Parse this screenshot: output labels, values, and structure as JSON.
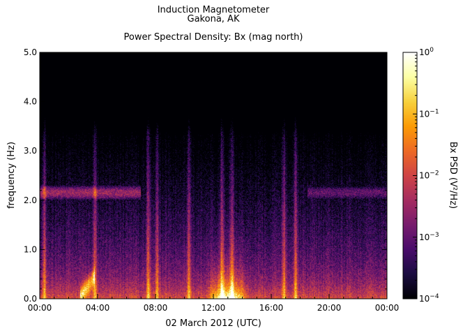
{
  "chart_data": {
    "type": "heatmap",
    "title": "Induction Magnetometer",
    "subtitle": "Gakona, AK",
    "plot_title": "Power Spectral Density: Bx (mag north)",
    "xlabel": "02 March 2012 (UTC)",
    "ylabel": "frequency (Hz)",
    "x_ticks": [
      "00:00",
      "04:00",
      "08:00",
      "12:00",
      "16:00",
      "20:00",
      "00:00"
    ],
    "x_range_hours": [
      0,
      24
    ],
    "y_ticks": [
      "0.0",
      "1.0",
      "2.0",
      "3.0",
      "4.0",
      "5.0"
    ],
    "ylim": [
      0,
      5
    ],
    "colorbar": {
      "label": "Bx PSD (V²/Hz)",
      "scale": "log",
      "range": [
        0.0001,
        1
      ],
      "ticks": [
        {
          "mantissa": "10",
          "exp": "0",
          "value": 1
        },
        {
          "mantissa": "10",
          "exp": "−1",
          "value": 0.1
        },
        {
          "mantissa": "10",
          "exp": "−2",
          "value": 0.01
        },
        {
          "mantissa": "10",
          "exp": "−3",
          "value": 0.001
        },
        {
          "mantissa": "10",
          "exp": "−4",
          "value": 0.0001
        }
      ],
      "colormap": [
        "#000004",
        "#1b0c41",
        "#4a0c6b",
        "#781c6d",
        "#a52c60",
        "#cf4446",
        "#ed6925",
        "#fb9b06",
        "#f7d13d",
        "#fcffa4",
        "#ffffff"
      ]
    },
    "features": {
      "background_log10_psd": -3.4,
      "band_2_2_hz": {
        "freq_hz": 2.15,
        "hours": [
          0,
          7
        ],
        "log10_psd": -2.5
      },
      "band_2_1_hz_faint": {
        "freq_hz": 2.15,
        "hours": [
          18.5,
          24
        ],
        "log10_psd": -3.0
      },
      "broadband_bursts_hours": [
        0.3,
        3.8,
        7.5,
        8.1,
        10.3,
        12.6,
        13.3,
        16.9,
        17.7
      ],
      "low_freq_enhancement_hours": [
        11.5,
        14.5
      ],
      "pc1_structure_hours": [
        2.8,
        3.8
      ]
    }
  }
}
